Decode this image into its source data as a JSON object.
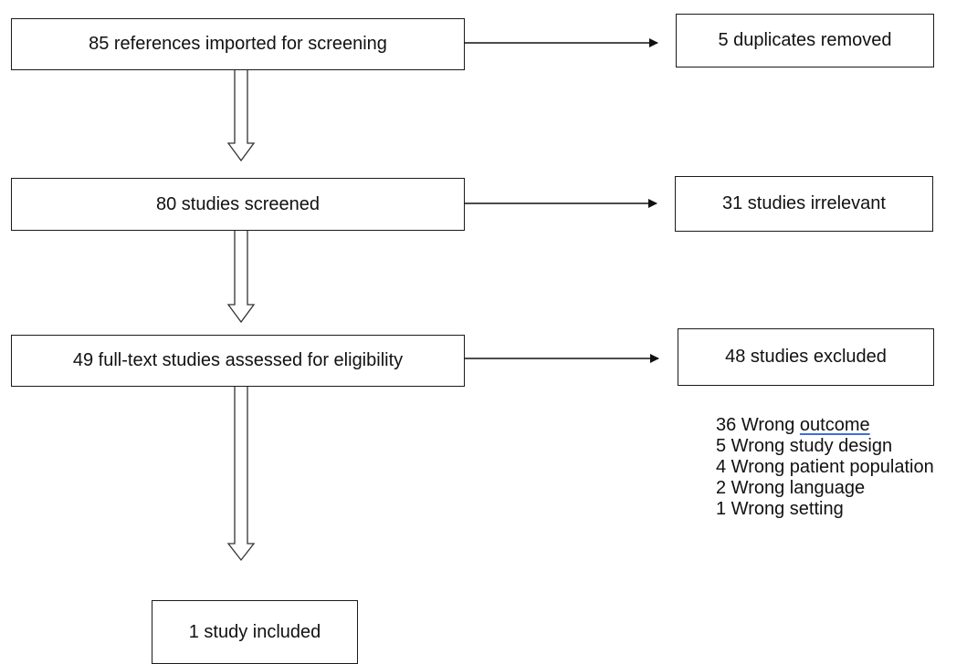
{
  "flow": {
    "main": [
      {
        "text": "85 references imported for screening"
      },
      {
        "text": "80 studies screened"
      },
      {
        "text": "49 full-text studies assessed for eligibility"
      },
      {
        "text": "1 study included"
      }
    ],
    "side": [
      {
        "text": "5 duplicates removed"
      },
      {
        "text": "31 studies irrelevant"
      },
      {
        "text": "48 studies excluded"
      }
    ],
    "exclusion_reasons": {
      "r1_count": "36",
      "r1_prefix": "Wrong",
      "r1_word": "outcome",
      "items": [
        "5 Wrong study design",
        "4 Wrong patient population",
        "2 Wrong language",
        "1 Wrong setting"
      ]
    }
  }
}
